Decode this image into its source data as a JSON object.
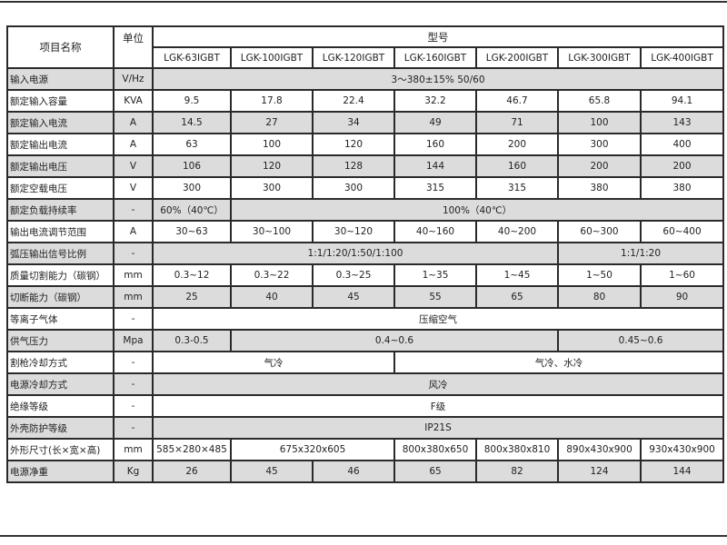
{
  "header": {
    "item_name": "项目名称",
    "unit": "单位",
    "model": "型号",
    "models": [
      "LGK-63IGBT",
      "LGK-100IGBT",
      "LGK-120IGBT",
      "LGK-160IGBT",
      "LGK-200IGBT",
      "LGK-300IGBT",
      "LGK-400IGBT"
    ]
  },
  "rows": [
    {
      "name": "输入电源",
      "unit": "V/Hz",
      "cells": [
        {
          "v": "3～380±15% 50/60",
          "span": 7
        }
      ]
    },
    {
      "name": "额定输入容量",
      "unit": "KVA",
      "cells": [
        {
          "v": "9.5"
        },
        {
          "v": "17.8"
        },
        {
          "v": "22.4"
        },
        {
          "v": "32.2"
        },
        {
          "v": "46.7"
        },
        {
          "v": "65.8"
        },
        {
          "v": "94.1"
        }
      ]
    },
    {
      "name": "额定输入电流",
      "unit": "A",
      "cells": [
        {
          "v": "14.5"
        },
        {
          "v": "27"
        },
        {
          "v": "34"
        },
        {
          "v": "49"
        },
        {
          "v": "71"
        },
        {
          "v": "100"
        },
        {
          "v": "143"
        }
      ]
    },
    {
      "name": "额定输出电流",
      "unit": "A",
      "cells": [
        {
          "v": "63"
        },
        {
          "v": "100"
        },
        {
          "v": "120"
        },
        {
          "v": "160"
        },
        {
          "v": "200"
        },
        {
          "v": "300"
        },
        {
          "v": "400"
        }
      ]
    },
    {
      "name": "额定输出电压",
      "unit": "V",
      "cells": [
        {
          "v": "106"
        },
        {
          "v": "120"
        },
        {
          "v": "128"
        },
        {
          "v": "144"
        },
        {
          "v": "160"
        },
        {
          "v": "200"
        },
        {
          "v": "200"
        }
      ]
    },
    {
      "name": "额定空载电压",
      "unit": "V",
      "cells": [
        {
          "v": "300"
        },
        {
          "v": "300"
        },
        {
          "v": "300"
        },
        {
          "v": "315"
        },
        {
          "v": "315"
        },
        {
          "v": "380"
        },
        {
          "v": "380"
        }
      ]
    },
    {
      "name": "额定负载持续率",
      "unit": "-",
      "cells": [
        {
          "v": "60%（40℃）"
        },
        {
          "v": "100%（40℃）",
          "span": 6
        }
      ]
    },
    {
      "name": "输出电流调节范围",
      "unit": "A",
      "cells": [
        {
          "v": "30~63"
        },
        {
          "v": "30~100"
        },
        {
          "v": "30~120"
        },
        {
          "v": "40~160"
        },
        {
          "v": "40~200"
        },
        {
          "v": "60~300"
        },
        {
          "v": "60~400"
        }
      ]
    },
    {
      "name": "弧压输出信号比例",
      "unit": "-",
      "cells": [
        {
          "v": "1:1/1:20/1:50/1:100",
          "span": 5
        },
        {
          "v": "1:1/1:20",
          "span": 2
        }
      ]
    },
    {
      "name": "质量切割能力（碳钢）",
      "unit": "mm",
      "cells": [
        {
          "v": "0.3~12"
        },
        {
          "v": "0.3~22"
        },
        {
          "v": "0.3~25"
        },
        {
          "v": "1~35"
        },
        {
          "v": "1~45"
        },
        {
          "v": "1~50"
        },
        {
          "v": "1~60"
        }
      ]
    },
    {
      "name": "切断能力（碳钢）",
      "unit": "mm",
      "cells": [
        {
          "v": "25"
        },
        {
          "v": "40"
        },
        {
          "v": "45"
        },
        {
          "v": "55"
        },
        {
          "v": "65"
        },
        {
          "v": "80"
        },
        {
          "v": "90"
        }
      ]
    },
    {
      "name": "等离子气体",
      "unit": "-",
      "cells": [
        {
          "v": "压缩空气",
          "span": 7
        }
      ]
    },
    {
      "name": "供气压力",
      "unit": "Mpa",
      "cells": [
        {
          "v": "0.3-0.5"
        },
        {
          "v": "0.4~0.6",
          "span": 4
        },
        {
          "v": "0.45~0.6",
          "span": 2
        }
      ]
    },
    {
      "name": "割枪冷却方式",
      "unit": "-",
      "cells": [
        {
          "v": "气冷",
          "span": 3
        },
        {
          "v": "气冷、水冷",
          "span": 4
        }
      ]
    },
    {
      "name": "电源冷却方式",
      "unit": "-",
      "cells": [
        {
          "v": "风冷",
          "span": 7
        }
      ]
    },
    {
      "name": "绝缘等级",
      "unit": "-",
      "cells": [
        {
          "v": "F级",
          "span": 7
        }
      ]
    },
    {
      "name": "外壳防护等级",
      "unit": "-",
      "cells": [
        {
          "v": "IP21S",
          "span": 7
        }
      ]
    },
    {
      "name": "外形尺寸(长×宽×高)",
      "unit": "mm",
      "cells": [
        {
          "v": "585×280×485"
        },
        {
          "v": "675x320x605",
          "span": 2
        },
        {
          "v": "800x380x650"
        },
        {
          "v": "800x380x810"
        },
        {
          "v": "890x430x900"
        },
        {
          "v": "930x430x900"
        }
      ]
    },
    {
      "name": "电源净重",
      "unit": "Kg",
      "cells": [
        {
          "v": "26"
        },
        {
          "v": "45"
        },
        {
          "v": "46"
        },
        {
          "v": "65"
        },
        {
          "v": "82"
        },
        {
          "v": "124"
        },
        {
          "v": "144"
        }
      ]
    }
  ],
  "colors": {
    "shade": "#dcdcdc",
    "border": "#2a2a2a"
  }
}
